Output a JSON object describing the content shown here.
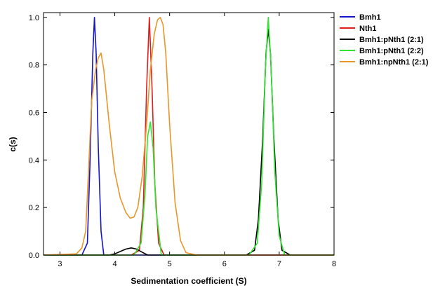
{
  "chart_data": {
    "type": "line",
    "title": "",
    "xlabel": "Sedimentation coefficient (S)",
    "ylabel": "c(s)",
    "xlim": [
      2.7,
      8.0
    ],
    "ylim": [
      0.0,
      1.02
    ],
    "x_ticks": [
      "3",
      "4",
      "5",
      "6",
      "7",
      "8"
    ],
    "y_ticks": [
      "0.0",
      "0.2",
      "0.4",
      "0.6",
      "0.8",
      "1.0"
    ],
    "grid": false,
    "legend_position": "top-right outside",
    "series": [
      {
        "name": "Bmh1",
        "color": "#1414c8",
        "x": [
          2.7,
          3.4,
          3.5,
          3.55,
          3.6,
          3.63,
          3.66,
          3.7,
          3.75,
          3.8,
          3.9,
          8.0
        ],
        "y": [
          0.0,
          0.0,
          0.05,
          0.4,
          0.85,
          1.0,
          0.85,
          0.45,
          0.1,
          0.0,
          0.0,
          0.0
        ]
      },
      {
        "name": "Nth1",
        "color": "#e01e1e",
        "x": [
          2.7,
          4.3,
          4.45,
          4.52,
          4.58,
          4.63,
          4.68,
          4.73,
          4.8,
          4.9,
          8.0
        ],
        "y": [
          0.0,
          0.0,
          0.02,
          0.2,
          0.7,
          1.0,
          0.7,
          0.3,
          0.05,
          0.0,
          0.0
        ]
      },
      {
        "name": "Bmh1:pNth1 (2:1)",
        "color": "#000000",
        "x": [
          2.7,
          3.9,
          4.0,
          4.1,
          4.2,
          4.3,
          4.4,
          4.5,
          4.6,
          6.4,
          6.55,
          6.62,
          6.7,
          6.76,
          6.8,
          6.84,
          6.9,
          6.98,
          7.05,
          7.2,
          8.0
        ],
        "y": [
          0.0,
          0.0,
          0.005,
          0.015,
          0.025,
          0.03,
          0.025,
          0.012,
          0.0,
          0.0,
          0.02,
          0.15,
          0.5,
          0.85,
          0.95,
          0.85,
          0.5,
          0.15,
          0.02,
          0.0,
          0.0
        ]
      },
      {
        "name": "Bmh1:pNth1 (2:2)",
        "color": "#2ee62e",
        "x": [
          2.7,
          4.35,
          4.48,
          4.55,
          4.6,
          4.65,
          4.7,
          4.75,
          4.85,
          6.45,
          6.6,
          6.68,
          6.75,
          6.8,
          6.85,
          6.92,
          7.0,
          7.1,
          7.2,
          8.0
        ],
        "y": [
          0.0,
          0.0,
          0.05,
          0.25,
          0.5,
          0.56,
          0.45,
          0.2,
          0.0,
          0.0,
          0.05,
          0.3,
          0.8,
          1.0,
          0.8,
          0.35,
          0.08,
          0.0,
          0.0,
          0.0
        ]
      },
      {
        "name": "Bmh1:npNth1 (2:1)",
        "color": "#e8962a",
        "x": [
          2.7,
          3.3,
          3.4,
          3.47,
          3.52,
          3.58,
          3.65,
          3.7,
          3.75,
          3.8,
          3.9,
          4.0,
          4.1,
          4.2,
          4.28,
          4.35,
          4.42,
          4.5,
          4.58,
          4.65,
          4.72,
          4.78,
          4.83,
          4.88,
          4.93,
          5.0,
          5.1,
          5.2,
          5.3,
          5.5,
          8.0
        ],
        "y": [
          0.0,
          0.005,
          0.03,
          0.1,
          0.35,
          0.65,
          0.78,
          0.83,
          0.85,
          0.78,
          0.55,
          0.35,
          0.24,
          0.18,
          0.155,
          0.16,
          0.2,
          0.33,
          0.55,
          0.78,
          0.93,
          0.99,
          1.0,
          0.97,
          0.85,
          0.55,
          0.22,
          0.06,
          0.01,
          0.0,
          0.0
        ]
      }
    ]
  }
}
